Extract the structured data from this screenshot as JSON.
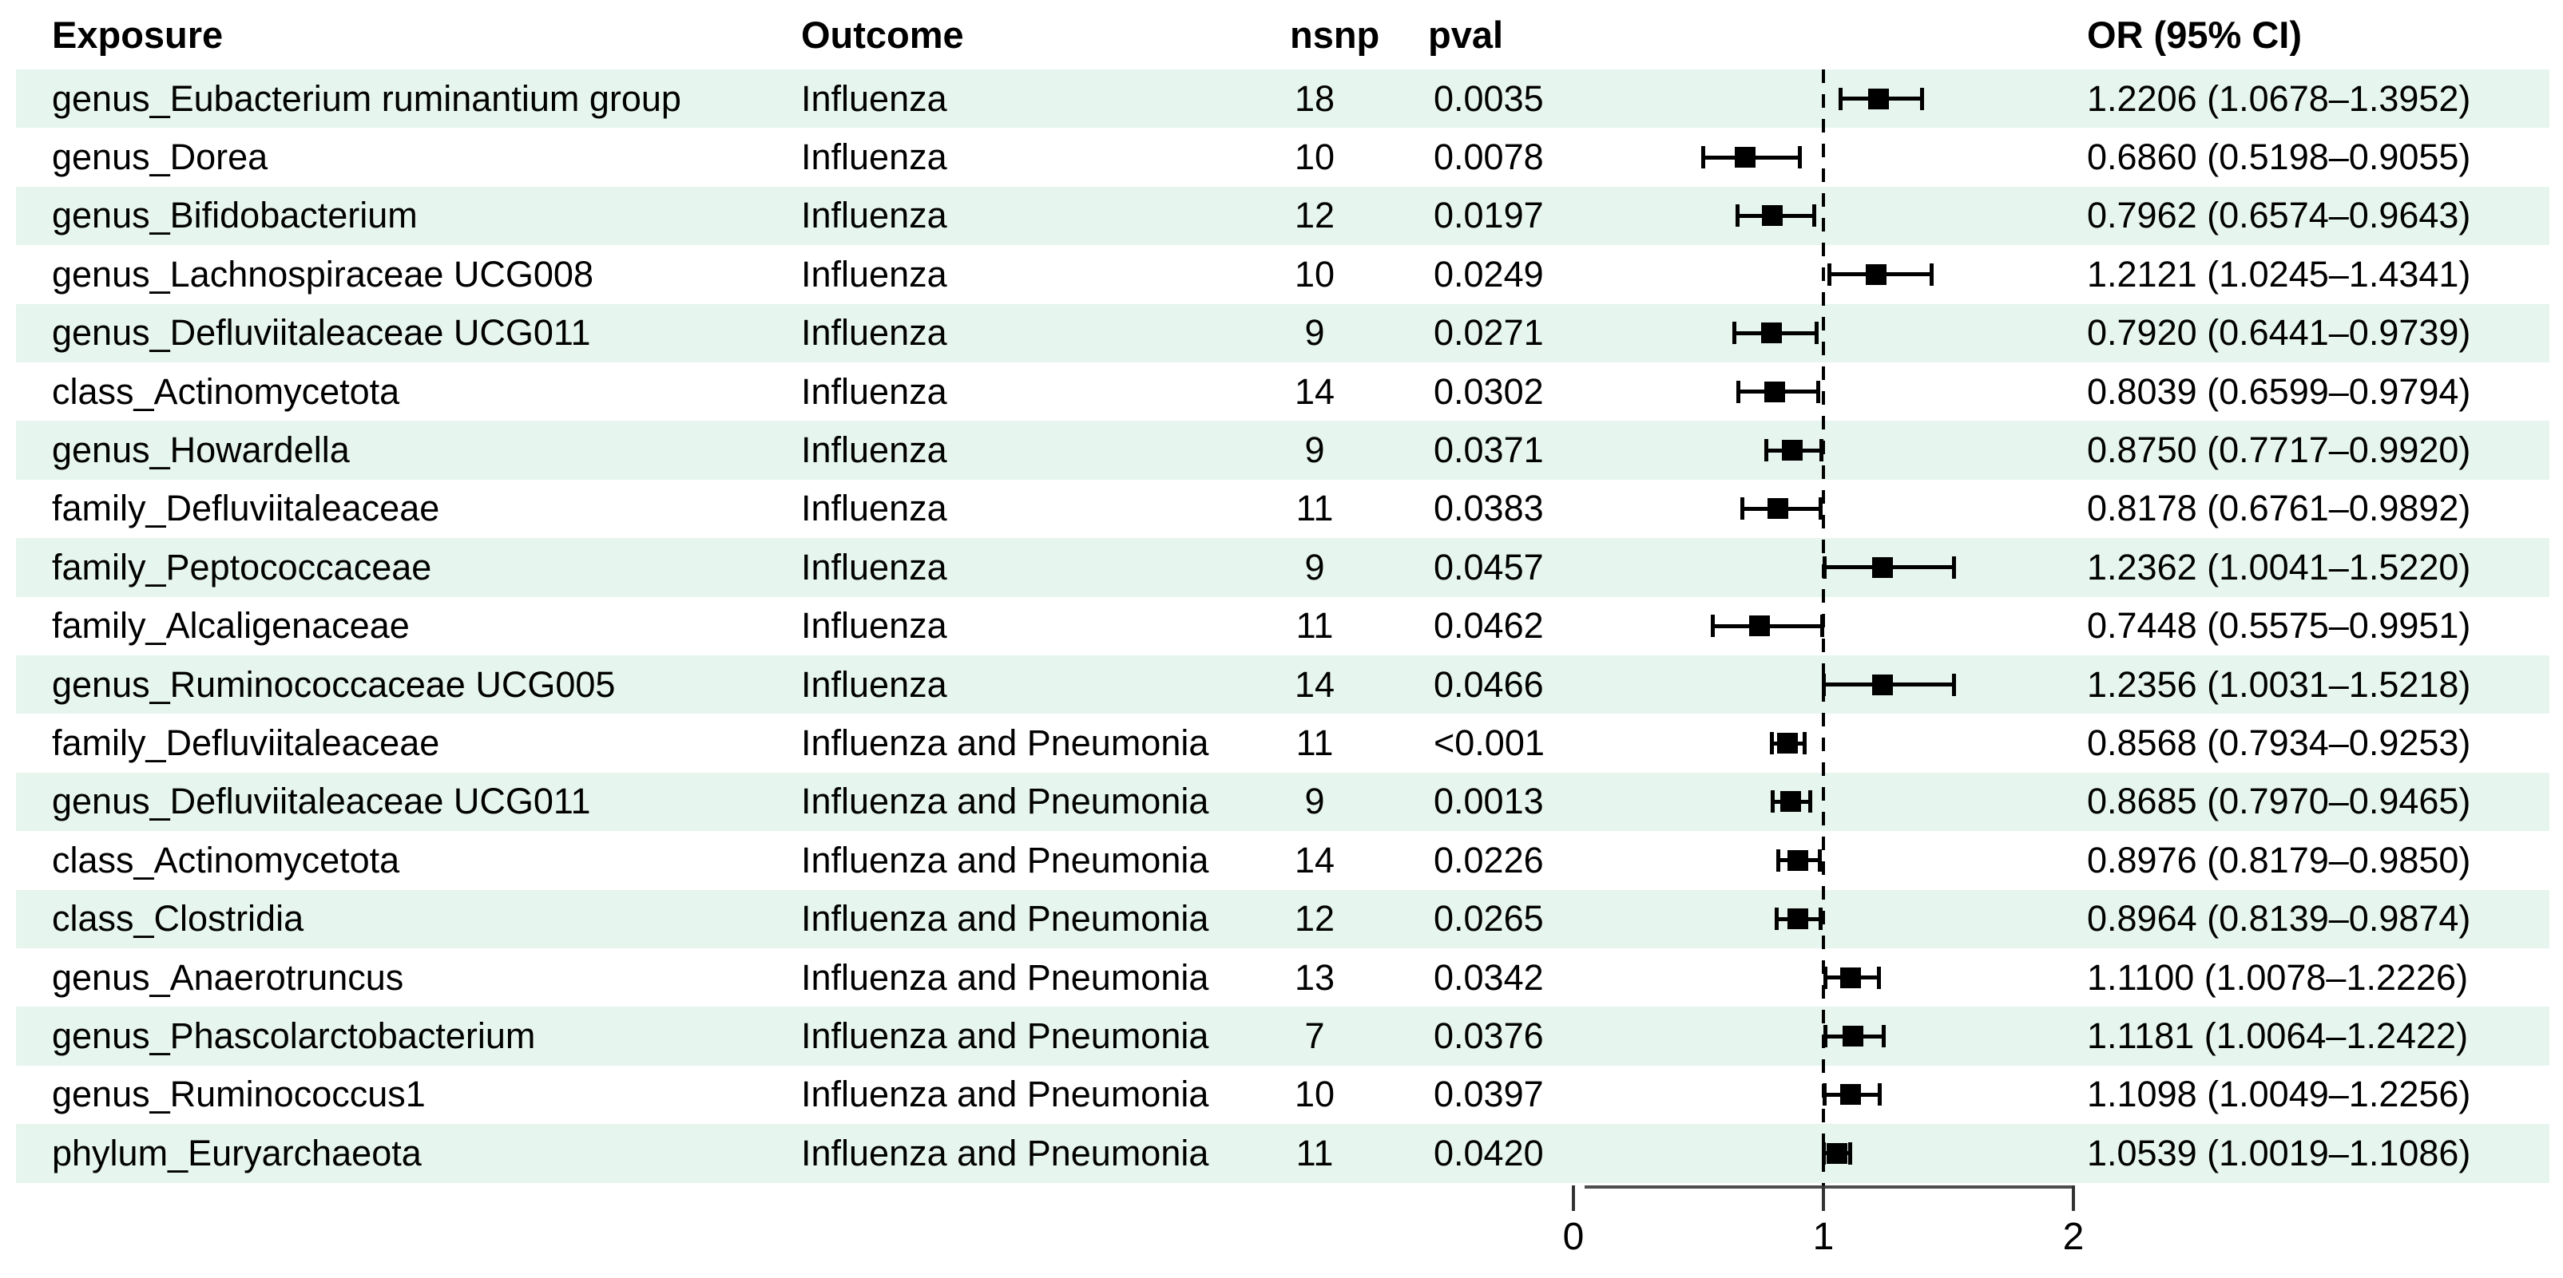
{
  "figure": {
    "kind": "mendelian-randomization-forest-plot"
  },
  "style": {
    "band_color": "#e6f5ed",
    "marker_color": "#000000",
    "axis_color": "#4d4d4d",
    "text_color": "#000000"
  },
  "table": {
    "headers": {
      "exposure": "Exposure",
      "outcome": "Outcome",
      "nsnp": "nsnp",
      "pval": "pval",
      "or_ci": "OR (95% CI)"
    },
    "rows": [
      {
        "exposure": "genus_Eubacterium ruminantium group",
        "outcome": "Influenza",
        "nsnp": "18",
        "pval": "0.0035",
        "or": 1.2206,
        "ci_low": 1.0678,
        "ci_high": 1.3952,
        "or_ci": "1.2206 (1.0678–1.3952)"
      },
      {
        "exposure": "genus_Dorea",
        "outcome": "Influenza",
        "nsnp": "10",
        "pval": "0.0078",
        "or": 0.686,
        "ci_low": 0.5198,
        "ci_high": 0.9055,
        "or_ci": "0.6860 (0.5198–0.9055)"
      },
      {
        "exposure": "genus_Bifidobacterium",
        "outcome": "Influenza",
        "nsnp": "12",
        "pval": "0.0197",
        "or": 0.7962,
        "ci_low": 0.6574,
        "ci_high": 0.9643,
        "or_ci": "0.7962 (0.6574–0.9643)"
      },
      {
        "exposure": "genus_Lachnospiraceae UCG008",
        "outcome": "Influenza",
        "nsnp": "10",
        "pval": "0.0249",
        "or": 1.2121,
        "ci_low": 1.0245,
        "ci_high": 1.4341,
        "or_ci": "1.2121 (1.0245–1.4341)"
      },
      {
        "exposure": "genus_Defluviitaleaceae UCG011",
        "outcome": "Influenza",
        "nsnp": "9",
        "pval": "0.0271",
        "or": 0.792,
        "ci_low": 0.6441,
        "ci_high": 0.9739,
        "or_ci": "0.7920 (0.6441–0.9739)"
      },
      {
        "exposure": "class_Actinomycetota",
        "outcome": "Influenza",
        "nsnp": "14",
        "pval": "0.0302",
        "or": 0.8039,
        "ci_low": 0.6599,
        "ci_high": 0.9794,
        "or_ci": "0.8039 (0.6599–0.9794)"
      },
      {
        "exposure": "genus_Howardella",
        "outcome": "Influenza",
        "nsnp": "9",
        "pval": "0.0371",
        "or": 0.875,
        "ci_low": 0.7717,
        "ci_high": 0.992,
        "or_ci": "0.8750 (0.7717–0.9920)"
      },
      {
        "exposure": "family_Defluviitaleaceae",
        "outcome": "Influenza",
        "nsnp": "11",
        "pval": "0.0383",
        "or": 0.8178,
        "ci_low": 0.6761,
        "ci_high": 0.9892,
        "or_ci": "0.8178 (0.6761–0.9892)"
      },
      {
        "exposure": "family_Peptococcaceae",
        "outcome": "Influenza",
        "nsnp": "9",
        "pval": "0.0457",
        "or": 1.2362,
        "ci_low": 1.0041,
        "ci_high": 1.522,
        "or_ci": "1.2362 (1.0041–1.5220)"
      },
      {
        "exposure": "family_Alcaligenaceae",
        "outcome": "Influenza",
        "nsnp": "11",
        "pval": "0.0462",
        "or": 0.7448,
        "ci_low": 0.5575,
        "ci_high": 0.9951,
        "or_ci": "0.7448 (0.5575–0.9951)"
      },
      {
        "exposure": "genus_Ruminococcaceae UCG005",
        "outcome": "Influenza",
        "nsnp": "14",
        "pval": "0.0466",
        "or": 1.2356,
        "ci_low": 1.0031,
        "ci_high": 1.5218,
        "or_ci": "1.2356 (1.0031–1.5218)"
      },
      {
        "exposure": "family_Defluviitaleaceae",
        "outcome": "Influenza and Pneumonia",
        "nsnp": "11",
        "pval": "<0.001",
        "or": 0.8568,
        "ci_low": 0.7934,
        "ci_high": 0.9253,
        "or_ci": "0.8568 (0.7934–0.9253)"
      },
      {
        "exposure": "genus_Defluviitaleaceae UCG011",
        "outcome": "Influenza and Pneumonia",
        "nsnp": "9",
        "pval": "0.0013",
        "or": 0.8685,
        "ci_low": 0.797,
        "ci_high": 0.9465,
        "or_ci": "0.8685 (0.7970–0.9465)"
      },
      {
        "exposure": "class_Actinomycetota",
        "outcome": "Influenza and Pneumonia",
        "nsnp": "14",
        "pval": "0.0226",
        "or": 0.8976,
        "ci_low": 0.8179,
        "ci_high": 0.985,
        "or_ci": "0.8976 (0.8179–0.9850)"
      },
      {
        "exposure": "class_Clostridia",
        "outcome": "Influenza and Pneumonia",
        "nsnp": "12",
        "pval": "0.0265",
        "or": 0.8964,
        "ci_low": 0.8139,
        "ci_high": 0.9874,
        "or_ci": "0.8964 (0.8139–0.9874)"
      },
      {
        "exposure": "genus_Anaerotruncus",
        "outcome": "Influenza and Pneumonia",
        "nsnp": "13",
        "pval": "0.0342",
        "or": 1.11,
        "ci_low": 1.0078,
        "ci_high": 1.2226,
        "or_ci": "1.1100 (1.0078–1.2226)"
      },
      {
        "exposure": "genus_Phascolarctobacterium",
        "outcome": "Influenza and Pneumonia",
        "nsnp": "7",
        "pval": "0.0376",
        "or": 1.1181,
        "ci_low": 1.0064,
        "ci_high": 1.2422,
        "or_ci": "1.1181 (1.0064–1.2422)"
      },
      {
        "exposure": "genus_Ruminococcus1",
        "outcome": "Influenza and Pneumonia",
        "nsnp": "10",
        "pval": "0.0397",
        "or": 1.1098,
        "ci_low": 1.0049,
        "ci_high": 1.2256,
        "or_ci": "1.1098 (1.0049–1.2256)"
      },
      {
        "exposure": "phylum_Euryarchaeota",
        "outcome": "Influenza and Pneumonia",
        "nsnp": "11",
        "pval": "0.0420",
        "or": 1.0539,
        "ci_low": 1.0019,
        "ci_high": 1.1086,
        "or_ci": "1.0539 (1.0019–1.1086)"
      }
    ]
  },
  "axis": {
    "tick_labels": [
      "0",
      "1",
      "2"
    ],
    "range": [
      0,
      2
    ],
    "reference": 1
  },
  "chart_data": {
    "type": "scatter",
    "subtype": "forest-plot-horizontal-error-bars",
    "title": "",
    "xlabel": "OR",
    "ylabel": "",
    "x_range": [
      0,
      2
    ],
    "x_ticks": [
      0,
      1,
      2
    ],
    "reference_line_x": 1,
    "grid": false,
    "legend": false,
    "categories": [
      "genus_Eubacterium ruminantium group | Influenza",
      "genus_Dorea | Influenza",
      "genus_Bifidobacterium | Influenza",
      "genus_Lachnospiraceae UCG008 | Influenza",
      "genus_Defluviitaleaceae UCG011 | Influenza",
      "class_Actinomycetota | Influenza",
      "genus_Howardella | Influenza",
      "family_Defluviitaleaceae | Influenza",
      "family_Peptococcaceae | Influenza",
      "family_Alcaligenaceae | Influenza",
      "genus_Ruminococcaceae UCG005 | Influenza",
      "family_Defluviitaleaceae | Influenza and Pneumonia",
      "genus_Defluviitaleaceae UCG011 | Influenza and Pneumonia",
      "class_Actinomycetota | Influenza and Pneumonia",
      "class_Clostridia | Influenza and Pneumonia",
      "genus_Anaerotruncus | Influenza and Pneumonia",
      "genus_Phascolarctobacterium | Influenza and Pneumonia",
      "genus_Ruminococcus1 | Influenza and Pneumonia",
      "phylum_Euryarchaeota | Influenza and Pneumonia"
    ],
    "or_values": [
      1.2206,
      0.686,
      0.7962,
      1.2121,
      0.792,
      0.8039,
      0.875,
      0.8178,
      1.2362,
      0.7448,
      1.2356,
      0.8568,
      0.8685,
      0.8976,
      0.8964,
      1.11,
      1.1181,
      1.1098,
      1.0539
    ],
    "ci_low": [
      1.0678,
      0.5198,
      0.6574,
      1.0245,
      0.6441,
      0.6599,
      0.7717,
      0.6761,
      1.0041,
      0.5575,
      1.0031,
      0.7934,
      0.797,
      0.8179,
      0.8139,
      1.0078,
      1.0064,
      1.0049,
      1.0019
    ],
    "ci_high": [
      1.3952,
      0.9055,
      0.9643,
      1.4341,
      0.9739,
      0.9794,
      0.992,
      0.9892,
      1.522,
      0.9951,
      1.5218,
      0.9253,
      0.9465,
      0.985,
      0.9874,
      1.2226,
      1.2422,
      1.2256,
      1.1086
    ],
    "nsnp": [
      18,
      10,
      12,
      10,
      9,
      14,
      9,
      11,
      9,
      11,
      14,
      11,
      9,
      14,
      12,
      13,
      7,
      10,
      11
    ],
    "pval": [
      "0.0035",
      "0.0078",
      "0.0197",
      "0.0249",
      "0.0271",
      "0.0302",
      "0.0371",
      "0.0383",
      "0.0457",
      "0.0462",
      "0.0466",
      "<0.001",
      "0.0013",
      "0.0226",
      "0.0265",
      "0.0342",
      "0.0376",
      "0.0397",
      "0.0420"
    ]
  }
}
